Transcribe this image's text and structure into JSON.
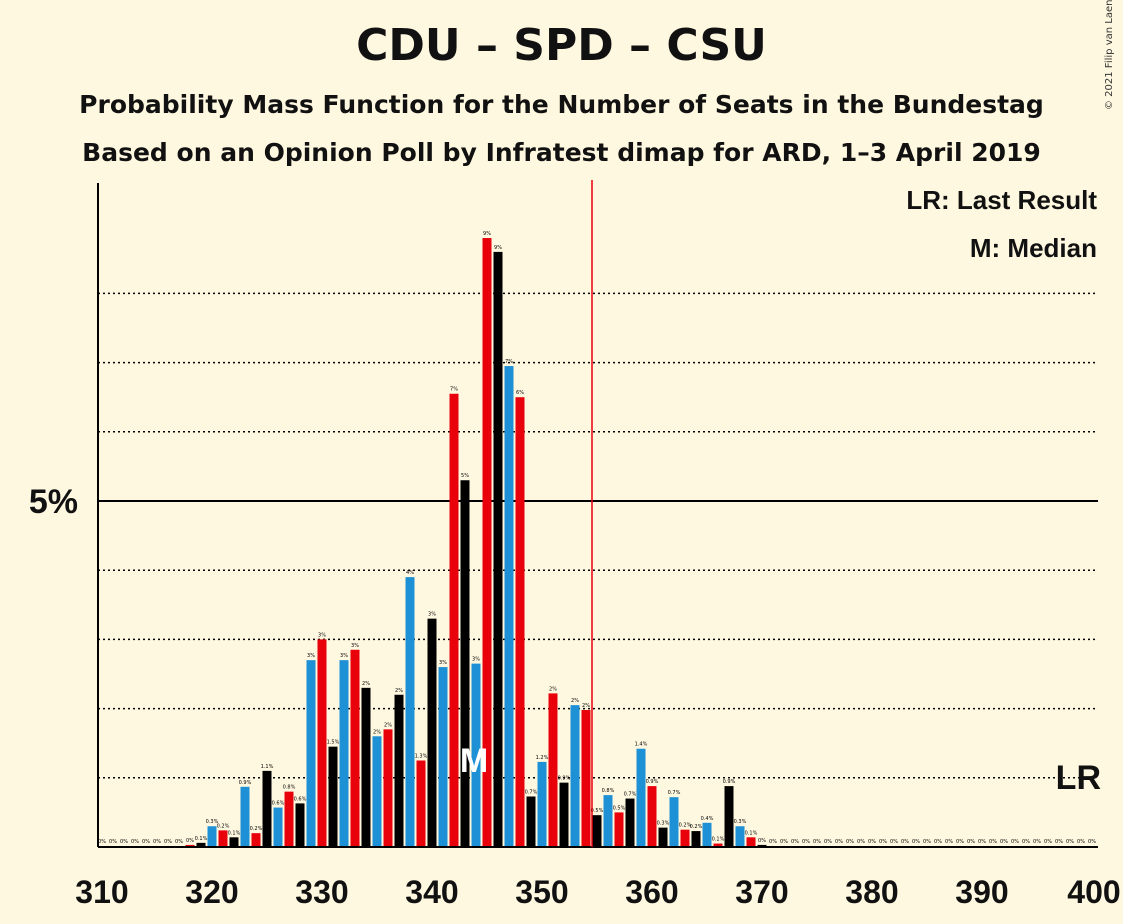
{
  "title": "CDU – SPD – CSU",
  "subtitle1": "Probability Mass Function for the Number of Seats in the Bundestag",
  "subtitle2": "Based on an Opinion Poll by Infratest dimap for ARD, 1–3 April 2019",
  "copyright": "© 2021 Filip van Laenen",
  "legend": {
    "lr": "LR: Last Result",
    "m": "M: Median"
  },
  "markers": {
    "lr_label": "LR",
    "median_label": "M",
    "majority_label": "",
    "y5_label": "5%"
  },
  "chart_data": {
    "type": "bar",
    "x_range": [
      310,
      400
    ],
    "x_ticks": [
      310,
      320,
      330,
      340,
      350,
      360,
      370,
      380,
      390,
      400
    ],
    "y_range": [
      0,
      9.5
    ],
    "y_labeled_tick": 5,
    "y_gridlines": [
      1,
      2,
      3,
      4,
      6,
      7,
      8
    ],
    "majority_line": 355,
    "median": 344,
    "last_result": 399,
    "colors": {
      "black": "#000000",
      "blue": "#1E90D6",
      "red": "#E8000B",
      "majority": "#E8000B"
    },
    "color_cycle": [
      "black",
      "blue",
      "red"
    ],
    "seats": [
      310,
      311,
      312,
      313,
      314,
      315,
      316,
      317,
      318,
      319,
      320,
      321,
      322,
      323,
      324,
      325,
      326,
      327,
      328,
      329,
      330,
      331,
      332,
      333,
      334,
      335,
      336,
      337,
      338,
      339,
      340,
      341,
      342,
      343,
      344,
      345,
      346,
      347,
      348,
      349,
      350,
      351,
      352,
      353,
      354,
      355,
      356,
      357,
      358,
      359,
      360,
      361,
      362,
      363,
      364,
      365,
      366,
      367,
      368,
      369,
      370,
      371,
      372,
      373,
      374,
      375,
      376,
      377,
      378,
      379,
      380,
      381,
      382,
      383,
      384,
      385,
      386,
      387,
      388,
      389,
      390,
      391,
      392,
      393,
      394,
      395,
      396,
      397,
      398,
      399,
      400
    ],
    "values": [
      0,
      0,
      0,
      0,
      0,
      0,
      0,
      0,
      0.03,
      0.06,
      0.3,
      0.24,
      0.14,
      0.87,
      0.2,
      1.1,
      0.57,
      0.8,
      0.63,
      2.7,
      3.0,
      1.45,
      2.7,
      2.85,
      2.3,
      1.6,
      1.7,
      2.2,
      3.9,
      1.25,
      3.3,
      2.6,
      6.55,
      5.3,
      2.65,
      8.8,
      8.6,
      6.95,
      6.5,
      0.73,
      1.23,
      2.22,
      0.93,
      2.05,
      1.98,
      0.46,
      0.75,
      0.5,
      0.7,
      1.42,
      0.88,
      0.28,
      0.72,
      0.25,
      0.23,
      0.35,
      0.05,
      0.88,
      0.3,
      0.14,
      0.03,
      0.01,
      0.01,
      0,
      0,
      0,
      0,
      0,
      0,
      0,
      0,
      0,
      0,
      0,
      0,
      0,
      0,
      0,
      0,
      0,
      0,
      0,
      0,
      0,
      0,
      0,
      0,
      0,
      0,
      0,
      0
    ],
    "labels": [
      "0%",
      "0%",
      "0%",
      "0%",
      "0%",
      "0%",
      "0%",
      "0%",
      "0%",
      "0.1%",
      "0.3%",
      "0.2%",
      "0.1%",
      "0.9%",
      "0.2%",
      "1.1%",
      "0.6%",
      "0.8%",
      "0.6%",
      "3%",
      "3%",
      "1.5%",
      "3%",
      "3%",
      "2%",
      "2%",
      "2%",
      "2%",
      "4%",
      "1.3%",
      "3%",
      "3%",
      "7%",
      "5%",
      "3%",
      "9%",
      "9%",
      "7%",
      "6%",
      "0.7%",
      "1.2%",
      "2%",
      "0.9%",
      "2%",
      "2%",
      "0.5%",
      "0.8%",
      "0.5%",
      "0.7%",
      "1.4%",
      "0.9%",
      "0.3%",
      "0.7%",
      "0.2%",
      "0.2%",
      "0.4%",
      "0.1%",
      "0.9%",
      "0.3%",
      "0.1%",
      "0%",
      "0%",
      "0%",
      "0%",
      "0%",
      "0%",
      "0%",
      "0%",
      "0%",
      "0%",
      "0%",
      "0%",
      "0%",
      "0%",
      "0%",
      "0%",
      "0%",
      "0%",
      "0%",
      "0%",
      "0%",
      "0%",
      "0%",
      "0%",
      "0%",
      "0%",
      "0%",
      "0%",
      "0%",
      "0%",
      "0%"
    ]
  }
}
